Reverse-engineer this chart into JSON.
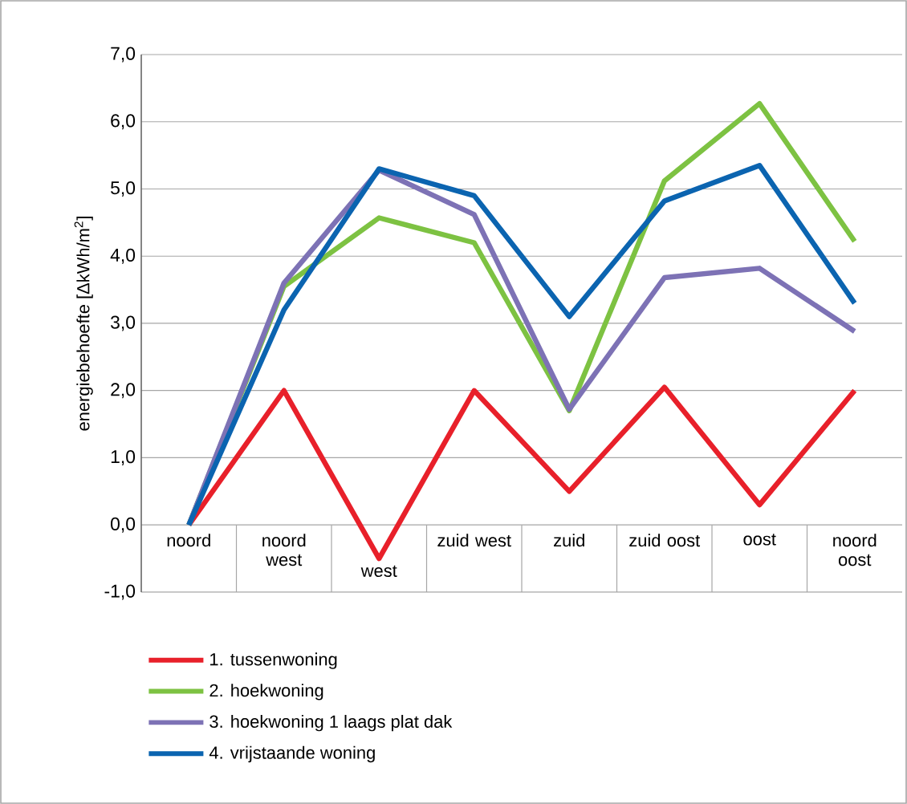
{
  "chart_data": {
    "type": "line",
    "ylabel": "energiebehoefte [ΔkWh/m$^{2}$]",
    "categories": [
      "noord",
      "noord west",
      "west",
      "zuid west",
      "zuid",
      "zuid oost",
      "oost",
      "noord oost"
    ],
    "ylim": [
      -1,
      7
    ],
    "yticks": [
      {
        "value": -1,
        "label": "-1,0"
      },
      {
        "value": 0,
        "label": "0,0"
      },
      {
        "value": 1,
        "label": "1,0"
      },
      {
        "value": 2,
        "label": "2,0"
      },
      {
        "value": 3,
        "label": "3,0"
      },
      {
        "value": 4,
        "label": "4,0"
      },
      {
        "value": 5,
        "label": "5,0"
      },
      {
        "value": 6,
        "label": "6,0"
      },
      {
        "value": 7,
        "label": "7,0"
      }
    ],
    "grid": "y",
    "legend": "bottom",
    "marker": "none",
    "line_style": "solid",
    "series": [
      {
        "name": "1. tussenwoning",
        "color": "#e8202a",
        "values": [
          0,
          2.0,
          -0.5,
          2.0,
          0.5,
          2.05,
          0.3,
          2.0
        ]
      },
      {
        "name": "2. hoekwoning",
        "color": "#7dc242",
        "values": [
          0,
          3.55,
          4.57,
          4.2,
          1.7,
          5.12,
          6.27,
          4.22
        ]
      },
      {
        "name": "3. hoekwoning 1 laags plat dak",
        "color": "#7d72b5",
        "values": [
          0,
          3.6,
          5.28,
          4.62,
          1.72,
          3.68,
          3.82,
          2.88
        ]
      },
      {
        "name": "4. vrijstaande woning",
        "color": "#0b64b0",
        "values": [
          0,
          3.2,
          5.3,
          4.9,
          3.1,
          4.82,
          5.35,
          3.3
        ]
      }
    ]
  }
}
